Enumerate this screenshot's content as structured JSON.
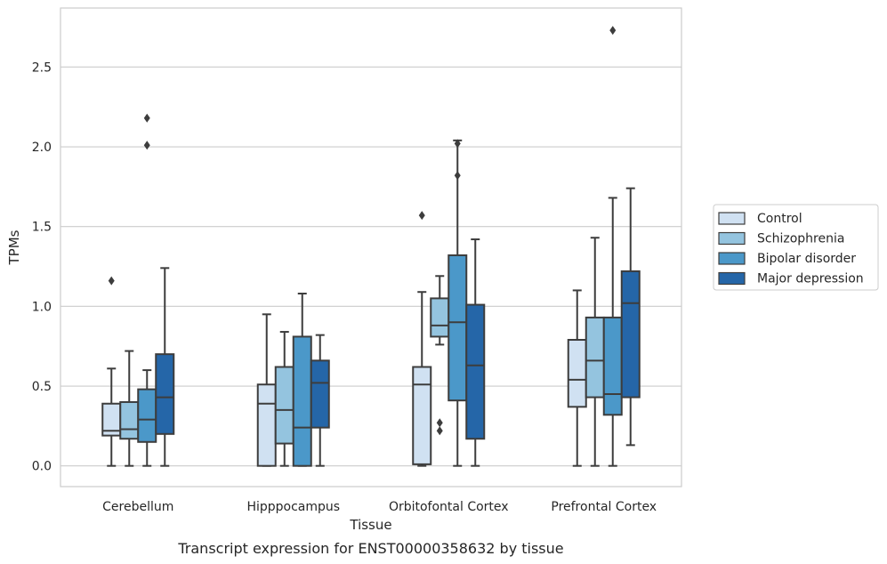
{
  "chart_data": {
    "type": "box",
    "caption": "Transcript expression for ENST00000358632 by tissue",
    "xlabel": "Tissue",
    "ylabel": "TPMs",
    "ylim": [
      -0.13,
      2.87
    ],
    "yticks": [
      "0.0",
      "0.5",
      "1.0",
      "1.5",
      "2.0",
      "2.5"
    ],
    "ytick_values": [
      0.0,
      0.5,
      1.0,
      1.5,
      2.0,
      2.5
    ],
    "grid": "horizontal",
    "legend_position": "right-outside",
    "categories": [
      "Cerebellum",
      "Hipppocampus",
      "Orbitofontal Cortex",
      "Prefrontal Cortex"
    ],
    "series": [
      {
        "name": "Control",
        "color": "#d0e1f2",
        "boxes": [
          {
            "whisker_low": 0.0,
            "q1": 0.19,
            "median": 0.22,
            "q3": 0.39,
            "whisker_high": 0.61,
            "outliers": [
              1.16
            ]
          },
          {
            "whisker_low": 0.0,
            "q1": 0.0,
            "median": 0.39,
            "q3": 0.51,
            "whisker_high": 0.95,
            "outliers": []
          },
          {
            "whisker_low": 0.0,
            "q1": 0.01,
            "median": 0.51,
            "q3": 0.62,
            "whisker_high": 1.09,
            "outliers": [
              1.57
            ]
          },
          {
            "whisker_low": 0.0,
            "q1": 0.37,
            "median": 0.54,
            "q3": 0.79,
            "whisker_high": 1.1,
            "outliers": []
          }
        ]
      },
      {
        "name": "Schizophrenia",
        "color": "#94c4df",
        "boxes": [
          {
            "whisker_low": 0.0,
            "q1": 0.17,
            "median": 0.23,
            "q3": 0.4,
            "whisker_high": 0.72,
            "outliers": []
          },
          {
            "whisker_low": 0.0,
            "q1": 0.14,
            "median": 0.35,
            "q3": 0.62,
            "whisker_high": 0.84,
            "outliers": []
          },
          {
            "whisker_low": 0.76,
            "q1": 0.81,
            "median": 0.88,
            "q3": 1.05,
            "whisker_high": 1.19,
            "outliers": [
              0.27,
              0.22
            ]
          },
          {
            "whisker_low": 0.0,
            "q1": 0.43,
            "median": 0.66,
            "q3": 0.93,
            "whisker_high": 1.43,
            "outliers": []
          }
        ]
      },
      {
        "name": "Bipolar disorder",
        "color": "#4b98c9",
        "boxes": [
          {
            "whisker_low": 0.0,
            "q1": 0.15,
            "median": 0.29,
            "q3": 0.48,
            "whisker_high": 0.6,
            "outliers": [
              2.01,
              2.18
            ]
          },
          {
            "whisker_low": 0.0,
            "q1": 0.0,
            "median": 0.24,
            "q3": 0.81,
            "whisker_high": 1.08,
            "outliers": []
          },
          {
            "whisker_low": 0.0,
            "q1": 0.41,
            "median": 0.9,
            "q3": 1.32,
            "whisker_high": 2.04,
            "outliers": [
              2.02,
              1.82
            ]
          },
          {
            "whisker_low": 0.0,
            "q1": 0.32,
            "median": 0.45,
            "q3": 0.93,
            "whisker_high": 1.68,
            "outliers": [
              2.73
            ]
          }
        ]
      },
      {
        "name": "Major depression",
        "color": "#2566a8",
        "boxes": [
          {
            "whisker_low": 0.0,
            "q1": 0.2,
            "median": 0.43,
            "q3": 0.7,
            "whisker_high": 1.24,
            "outliers": []
          },
          {
            "whisker_low": 0.0,
            "q1": 0.24,
            "median": 0.52,
            "q3": 0.66,
            "whisker_high": 0.82,
            "outliers": []
          },
          {
            "whisker_low": 0.0,
            "q1": 0.17,
            "median": 0.63,
            "q3": 1.01,
            "whisker_high": 1.42,
            "outliers": []
          },
          {
            "whisker_low": 0.13,
            "q1": 0.43,
            "median": 1.02,
            "q3": 1.22,
            "whisker_high": 1.74,
            "outliers": []
          }
        ]
      }
    ]
  }
}
